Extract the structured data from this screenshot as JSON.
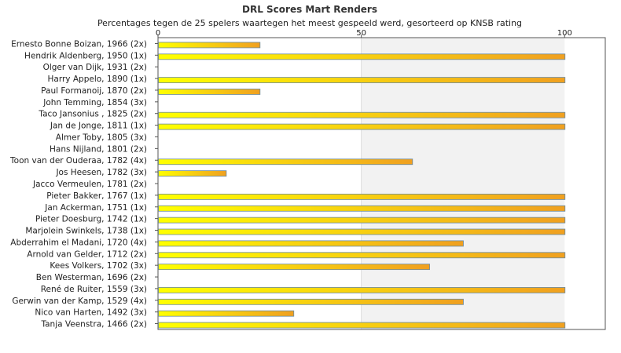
{
  "chart_data": {
    "type": "bar",
    "orientation": "horizontal",
    "title": "DRL Scores Mart Renders",
    "subtitle": "Percentages tegen de 25 spelers waartegen het meest gespeeld werd, gesorteerd op KNSB rating",
    "xlim": [
      0,
      110
    ],
    "xticks": [
      "0",
      "50",
      "100"
    ],
    "grid": false,
    "legend": "none",
    "colors": {
      "bar_start": "#ffff00",
      "bar_end": "#f0a020",
      "bar_stroke": "#6a8aa0",
      "band": "#f2f2f2"
    },
    "categories": [
      "Ernesto Bonne Boizan, 1966 (2x)",
      "Hendrik Aldenberg, 1950 (1x)",
      "Olger van Dijk, 1931 (2x)",
      "Harry Appelo, 1890 (1x)",
      "Paul Formanoij, 1870 (2x)",
      "John Temming, 1854 (3x)",
      "Taco Jansonius , 1825 (2x)",
      "Jan de Jonge, 1811 (1x)",
      "Almer Toby, 1805 (3x)",
      "Hans Nijland, 1801 (2x)",
      "Toon van der Ouderaa, 1782 (4x)",
      "Jos Heesen, 1782 (3x)",
      "Jacco Vermeulen, 1781 (2x)",
      "Pieter Bakker, 1767 (1x)",
      "Jan Ackerman, 1751 (1x)",
      "Pieter Doesburg, 1742 (1x)",
      "Marjolein Swinkels, 1738 (1x)",
      "Abderrahim el Madani, 1720 (4x)",
      "Arnold van Gelder, 1712 (2x)",
      "Kees Volkers, 1702 (3x)",
      "Ben Westerman, 1696 (2x)",
      "René de Ruiter, 1559 (3x)",
      "Gerwin van der Kamp, 1529 (4x)",
      "Nico van Harten, 1492 (3x)",
      "Tanja Veenstra, 1466 (2x)"
    ],
    "values": [
      25,
      100,
      0,
      100,
      25,
      0,
      100,
      100,
      0,
      0,
      62.5,
      16.7,
      0,
      100,
      100,
      100,
      100,
      75,
      100,
      66.7,
      0,
      100,
      75,
      33.3,
      100
    ]
  }
}
